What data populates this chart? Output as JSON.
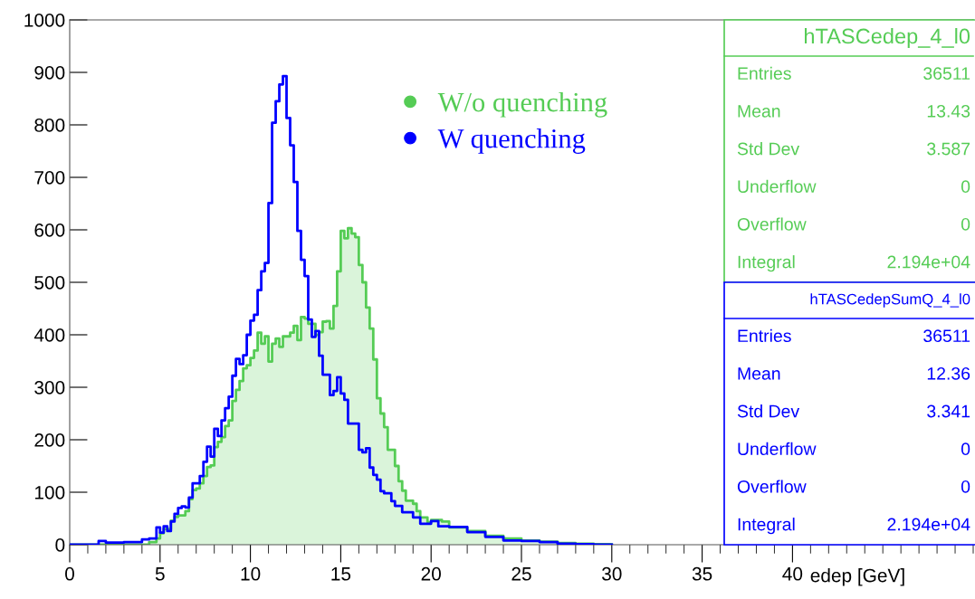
{
  "chart_data": {
    "type": "step",
    "xlabel": "edep [GeV]",
    "x": [
      0,
      1.6,
      2,
      3,
      4,
      4.4,
      4.8,
      5.0,
      5.2,
      5.4,
      5.6,
      5.8,
      6.0,
      6.2,
      6.4,
      6.6,
      6.8,
      7.0,
      7.2,
      7.4,
      7.6,
      7.8,
      8.0,
      8.2,
      8.4,
      8.6,
      8.8,
      9.0,
      9.2,
      9.4,
      9.6,
      9.8,
      10.0,
      10.2,
      10.4,
      10.6,
      10.8,
      11.0,
      11.2,
      11.4,
      11.6,
      11.8,
      12.0,
      12.2,
      12.4,
      12.6,
      12.8,
      13.0,
      13.2,
      13.4,
      13.6,
      13.8,
      14.0,
      14.2,
      14.4,
      14.6,
      14.8,
      15.0,
      15.2,
      15.4,
      15.6,
      15.8,
      16.0,
      16.2,
      16.4,
      16.6,
      16.8,
      17.0,
      17.2,
      17.4,
      17.6,
      17.8,
      18.0,
      18.2,
      18.4,
      18.6,
      18.8,
      19.0,
      19.2,
      19.4,
      19.6,
      19.8,
      20.0,
      20.2,
      20.4,
      20.6,
      20.8,
      21.0,
      22,
      23,
      24,
      25,
      26,
      27,
      28,
      29,
      30
    ],
    "series": [
      {
        "name": "W/o quenching",
        "type": "area",
        "color": "#55cc55",
        "values": [
          0,
          0,
          0,
          0,
          0,
          5,
          12,
          22,
          30,
          30,
          46,
          53,
          56,
          56,
          64,
          87,
          104,
          107,
          117,
          131,
          148,
          151,
          186,
          196,
          205,
          226,
          237,
          274,
          295,
          312,
          336,
          342,
          356,
          370,
          404,
          383,
          397,
          349,
          383,
          393,
          377,
          397,
          397,
          404,
          417,
          390,
          434,
          431,
          421,
          421,
          400,
          405,
          425,
          426,
          412,
          455,
          521,
          598,
          584,
          603,
          593,
          586,
          533,
          500,
          452,
          412,
          353,
          279,
          250,
          224,
          181,
          181,
          150,
          121,
          103,
          84,
          84,
          78,
          64,
          52,
          52,
          43,
          47,
          47,
          47,
          44,
          44,
          33,
          26,
          17,
          12,
          8,
          6,
          3,
          2,
          1,
          0
        ]
      },
      {
        "name": "W quenching",
        "color": "#0000ff",
        "values": [
          0,
          7,
          4,
          5,
          10,
          12,
          33,
          23,
          35,
          26,
          44,
          59,
          70,
          73,
          71,
          90,
          117,
          117,
          131,
          158,
          187,
          168,
          221,
          207,
          237,
          260,
          282,
          322,
          354,
          344,
          361,
          400,
          427,
          438,
          485,
          521,
          537,
          651,
          804,
          845,
          877,
          893,
          813,
          761,
          691,
          598,
          543,
          512,
          429,
          396,
          407,
          360,
          324,
          324,
          285,
          293,
          319,
          288,
          276,
          231,
          231,
          231,
          181,
          176,
          184,
          147,
          133,
          124,
          102,
          98,
          98,
          83,
          74,
          74,
          62,
          62,
          62,
          52,
          52,
          40,
          40,
          40,
          45,
          45,
          35,
          35,
          35,
          34,
          24,
          15,
          8,
          7,
          5,
          2,
          1,
          0,
          0
        ]
      }
    ],
    "xlim": [
      0,
      50
    ],
    "xticks": [
      0,
      5,
      10,
      15,
      20,
      25,
      30,
      35,
      40
    ],
    "ylim": [
      0,
      1000
    ],
    "yticks": [
      0,
      100,
      200,
      300,
      400,
      500,
      600,
      700,
      800,
      900,
      1000
    ],
    "legend": "top",
    "grid": false,
    "annotations": [
      "hTASCedep_4_l0",
      "Entries",
      "36511",
      "Mean",
      "13.43",
      "Std Dev",
      "3.587",
      "Underflow",
      "0",
      "Overflow",
      "0",
      "Integral",
      "2.194e+04",
      "hTASCedepSumQ_4_l0",
      "Entries",
      "36511",
      "Mean",
      "12.36",
      "Std Dev",
      "3.341",
      "Underflow",
      "0",
      "Overflow",
      "0",
      "Integral",
      "2.194e+04"
    ]
  }
}
